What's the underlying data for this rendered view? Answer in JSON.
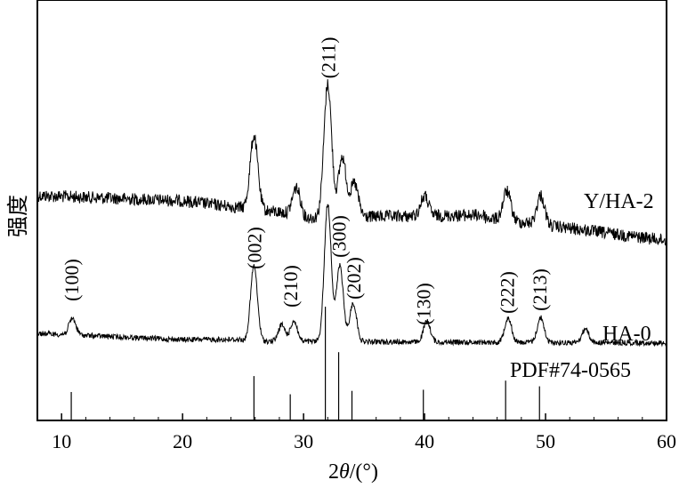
{
  "chart_data": {
    "type": "line",
    "xlabel_prefix": "2",
    "xlabel_theta": "θ",
    "xlabel_suffix": "/(°)",
    "ylabel": "强度",
    "xlim": [
      8,
      60
    ],
    "x_ticks": [
      10,
      20,
      30,
      40,
      50,
      60
    ],
    "grid": false,
    "series": [
      {
        "name": "Y/HA-2",
        "peaks": [
          {
            "x": 8,
            "h": 0.0
          },
          {
            "x": 25.9,
            "h": 0.55
          },
          {
            "x": 29.4,
            "h": 0.2
          },
          {
            "x": 32.0,
            "h": 1.0
          },
          {
            "x": 33.2,
            "h": 0.45
          },
          {
            "x": 34.2,
            "h": 0.25
          },
          {
            "x": 40.0,
            "h": 0.15
          },
          {
            "x": 46.8,
            "h": 0.22
          },
          {
            "x": 49.6,
            "h": 0.22
          }
        ]
      },
      {
        "name": "HA-0",
        "peaks": [
          {
            "x": 10.9,
            "h": 0.12
          },
          {
            "x": 25.9,
            "h": 0.55
          },
          {
            "x": 28.2,
            "h": 0.12
          },
          {
            "x": 29.2,
            "h": 0.15
          },
          {
            "x": 32.0,
            "h": 1.0
          },
          {
            "x": 33.0,
            "h": 0.55
          },
          {
            "x": 34.1,
            "h": 0.28
          },
          {
            "x": 40.2,
            "h": 0.15
          },
          {
            "x": 46.9,
            "h": 0.18
          },
          {
            "x": 49.6,
            "h": 0.18
          },
          {
            "x": 53.3,
            "h": 0.1
          }
        ]
      },
      {
        "name": "PDF#74-0565",
        "sticks": [
          {
            "x": 10.8,
            "i": 0.25
          },
          {
            "x": 25.9,
            "i": 0.39
          },
          {
            "x": 28.9,
            "i": 0.23
          },
          {
            "x": 31.8,
            "i": 1.0
          },
          {
            "x": 32.9,
            "i": 0.6
          },
          {
            "x": 34.0,
            "i": 0.26
          },
          {
            "x": 39.9,
            "i": 0.27
          },
          {
            "x": 46.7,
            "i": 0.35
          },
          {
            "x": 49.5,
            "i": 0.3
          }
        ]
      }
    ],
    "annotations": [
      {
        "text": "(211)",
        "x": 32.0
      },
      {
        "text": "(100)",
        "x": 10.8
      },
      {
        "text": "(002)",
        "x": 25.9
      },
      {
        "text": "(210)",
        "x": 28.9
      },
      {
        "text": "(300)",
        "x": 32.9
      },
      {
        "text": "(202)",
        "x": 34.1
      },
      {
        "text": "(130)",
        "x": 39.9
      },
      {
        "text": "(222)",
        "x": 46.8
      },
      {
        "text": "(213)",
        "x": 49.5
      }
    ]
  }
}
